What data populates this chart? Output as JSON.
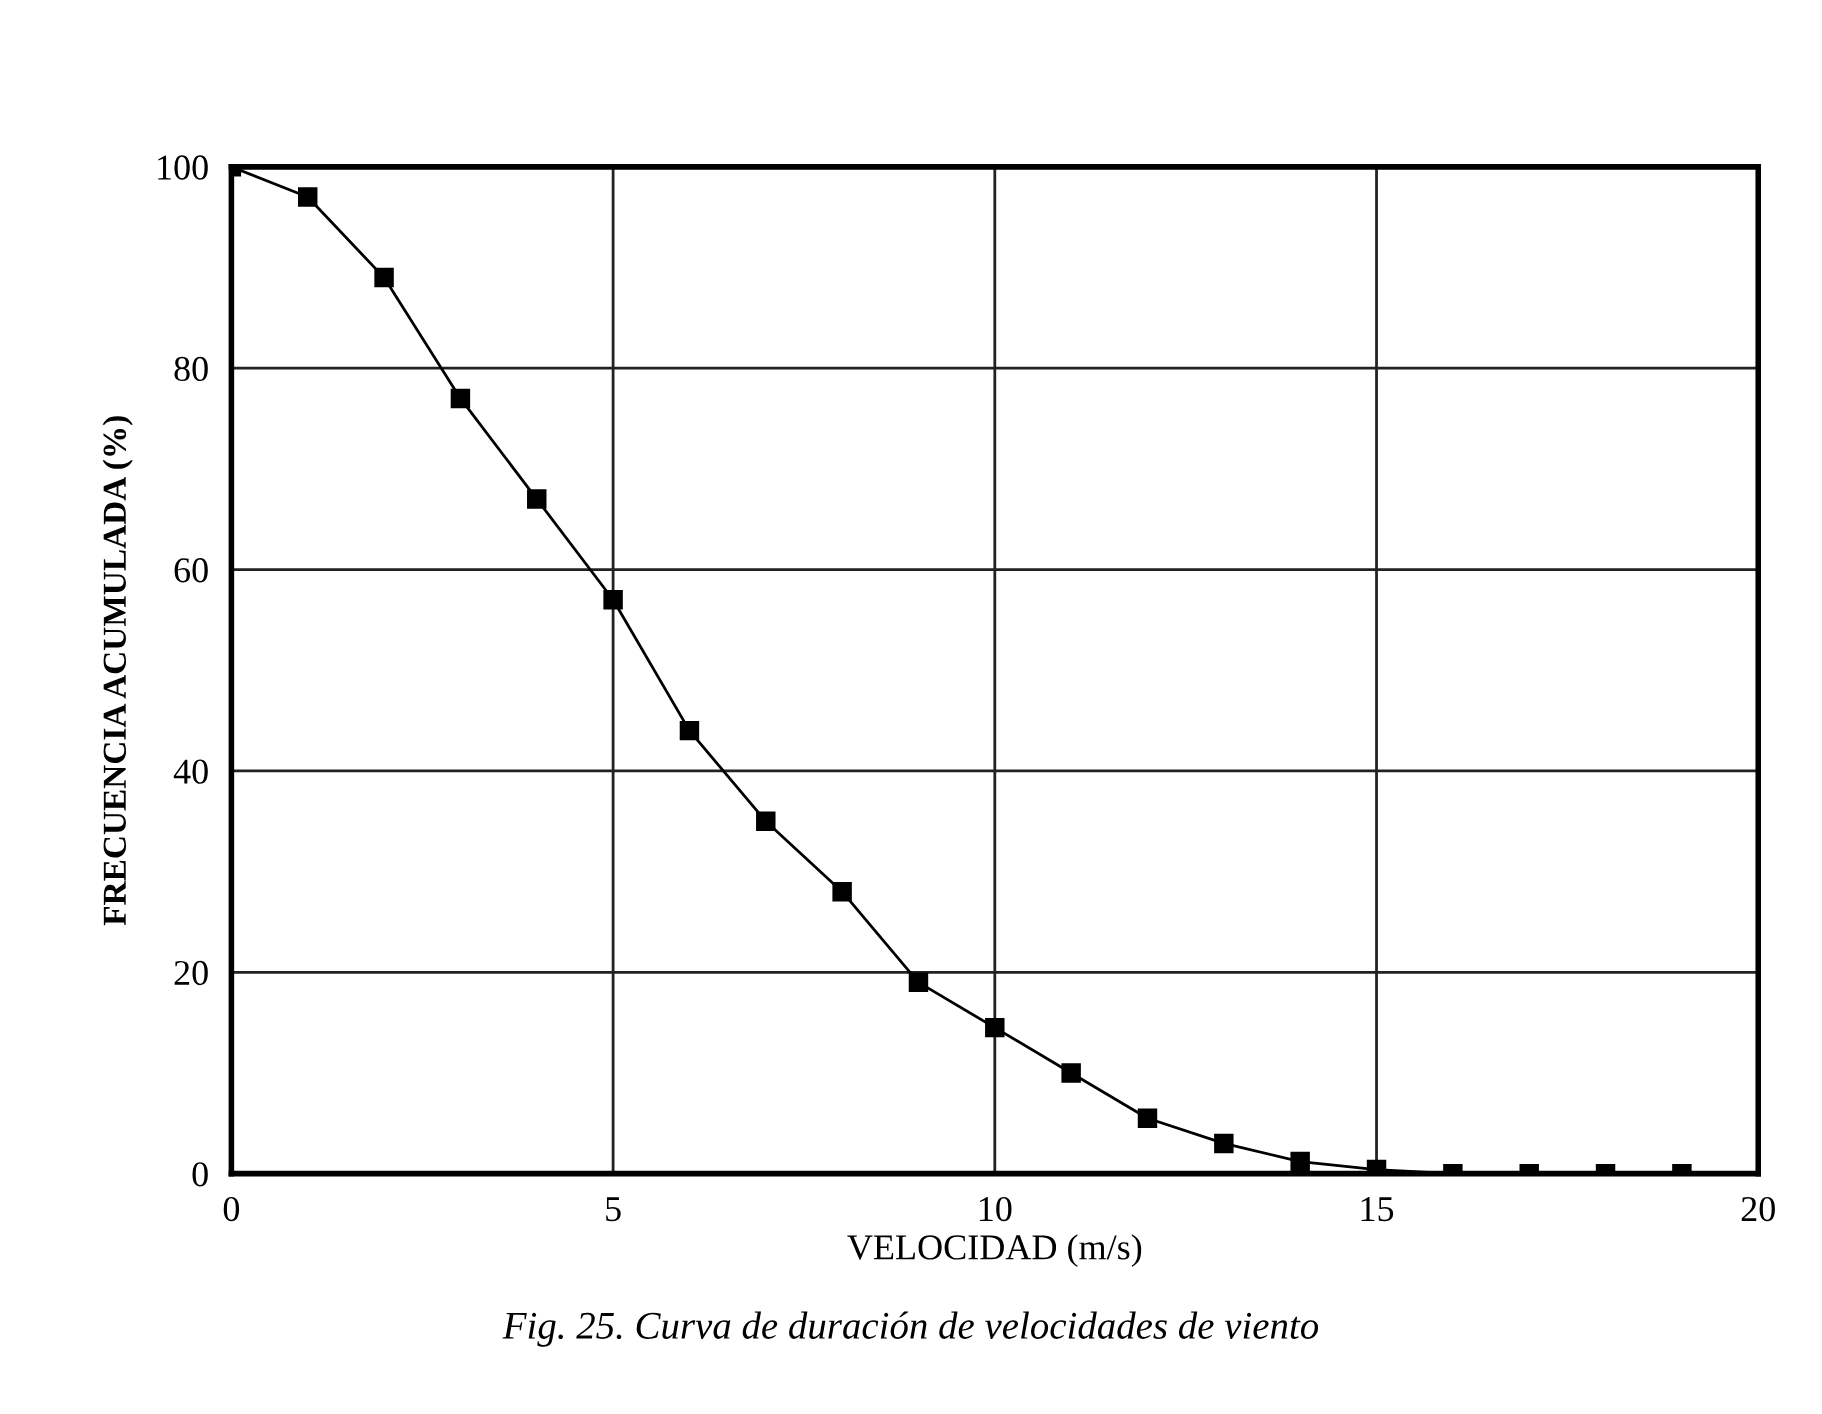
{
  "chart_data": {
    "type": "line",
    "xlabel": "VELOCIDAD (m/s)",
    "ylabel": "FRECUENCIA ACUMULADA (%)",
    "annotations": [
      "Fig. 25. Curva de duración de velocidades de viento"
    ],
    "x": [
      0,
      1,
      2,
      3,
      4,
      5,
      6,
      7,
      8,
      9,
      10,
      11,
      12,
      13,
      14,
      15,
      16,
      17,
      18,
      19
    ],
    "series": [
      {
        "color": "#000000",
        "values": [
          100,
          97,
          89,
          77,
          67,
          57,
          44,
          35,
          28,
          19,
          14.5,
          10,
          5.5,
          3,
          1.2,
          0.4,
          0,
          0,
          0,
          0
        ]
      }
    ],
    "xlim": [
      0,
      20
    ],
    "xticks": [
      0,
      5,
      10,
      15,
      20
    ],
    "ylim": [
      0,
      100
    ],
    "yticks": [
      0,
      20,
      40,
      60,
      80,
      100
    ],
    "grid": true,
    "marker": "square",
    "line_style": "solid"
  }
}
